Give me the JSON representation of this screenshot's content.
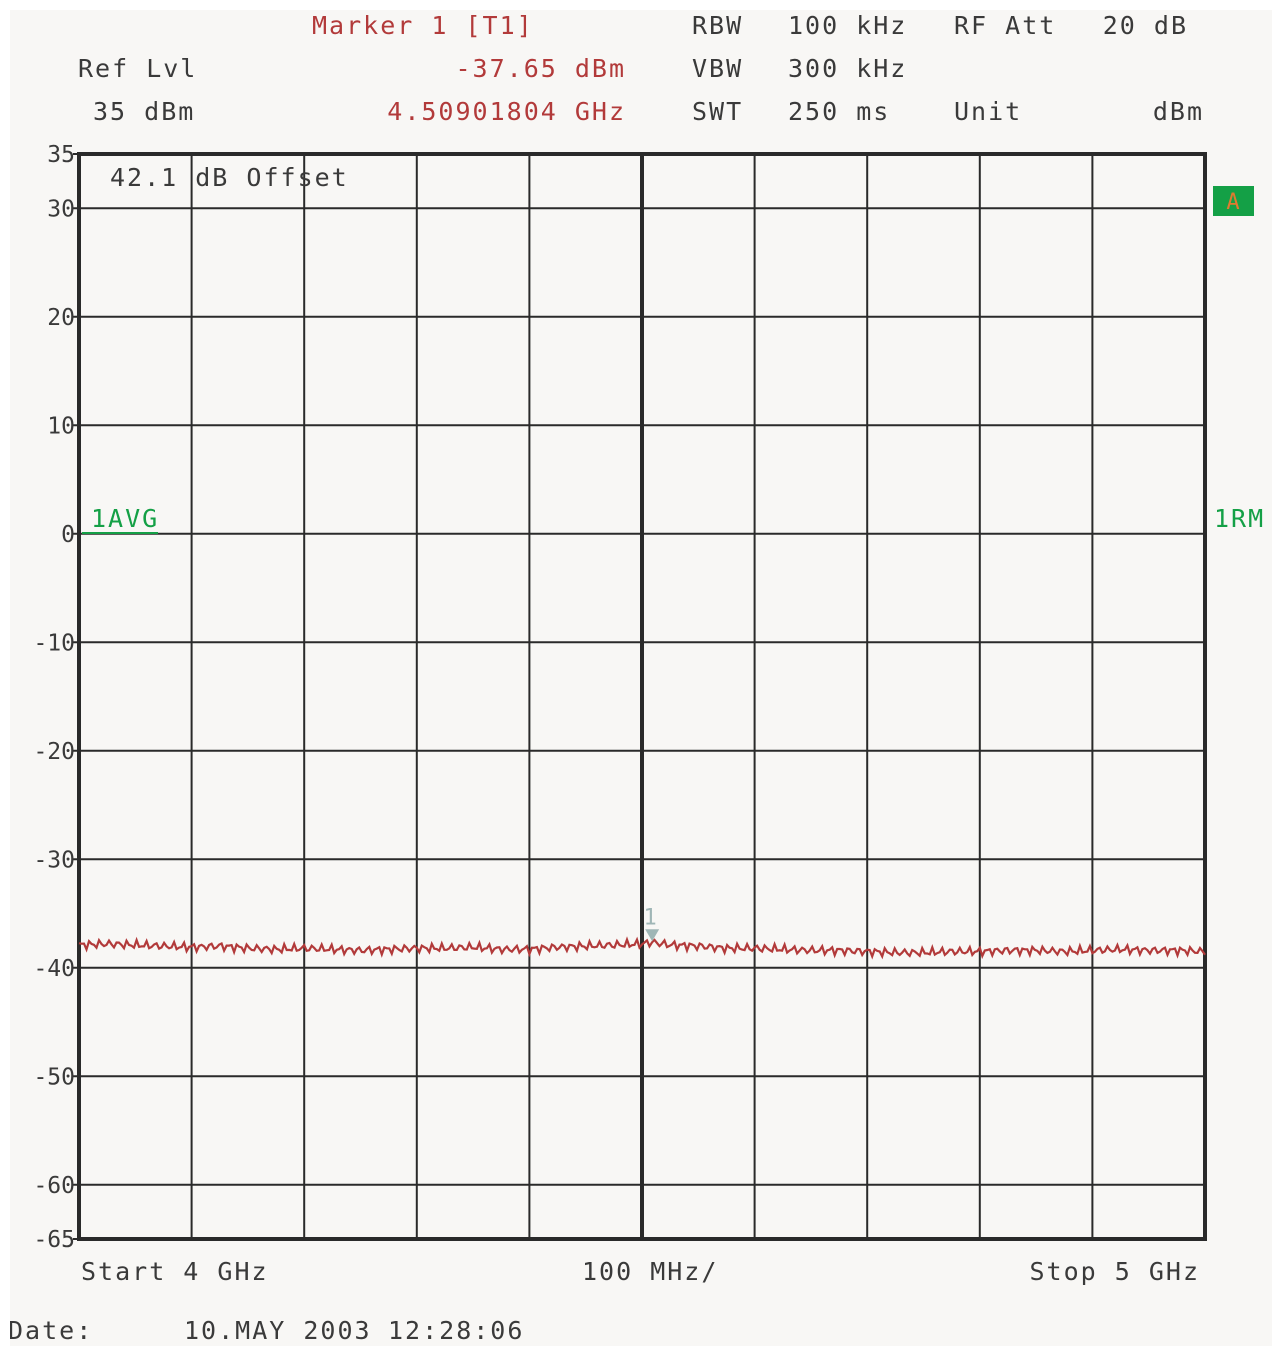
{
  "header": {
    "marker_title": "Marker 1 [T1]",
    "ref_lvl_label": "Ref Lvl",
    "ref_lvl_value": "35 dBm",
    "marker_level": "-37.65 dBm",
    "marker_freq": "4.50901804 GHz",
    "rbw_label": "RBW",
    "rbw_value": "100 kHz",
    "vbw_label": "VBW",
    "vbw_value": "300 kHz",
    "swt_label": "SWT",
    "swt_value": "250 ms",
    "rf_att_label": "RF Att",
    "rf_att_value": "20 dB",
    "unit_label": "Unit",
    "unit_value": "dBm"
  },
  "plot": {
    "offset_text": "42.1 dB Offset",
    "trace_label_left": "1AVG",
    "trace_label_right": "1RM",
    "badge": "A",
    "marker_number": "1"
  },
  "footer": {
    "start": "Start 4 GHz",
    "span_per_div": "100 MHz/",
    "stop": "Stop 5 GHz",
    "date_label": "Date:",
    "date_value": "10.MAY 2003",
    "time_value": "12:28:06"
  },
  "colors": {
    "trace": "#b23a3a",
    "grid": "#2a2a2a",
    "accent_green": "#14a046",
    "marker": "#9fb6b6"
  },
  "chart_data": {
    "type": "line",
    "title": "",
    "xlabel": "",
    "ylabel": "",
    "xlim": [
      4.0,
      5.0
    ],
    "ylim": [
      -65,
      35
    ],
    "y_ticks": [
      35,
      30,
      20,
      10,
      0,
      -10,
      -20,
      -30,
      -40,
      -50,
      -60,
      -65
    ],
    "x_divisions": 10,
    "grid": true,
    "series": [
      {
        "x": [
          4.0,
          4.025,
          4.05,
          4.075,
          4.1,
          4.125,
          4.15,
          4.175,
          4.2,
          4.225,
          4.25,
          4.275,
          4.3,
          4.325,
          4.35,
          4.375,
          4.4,
          4.425,
          4.45,
          4.475,
          4.5,
          4.509,
          4.525,
          4.55,
          4.575,
          4.6,
          4.625,
          4.65,
          4.675,
          4.7,
          4.725,
          4.75,
          4.775,
          4.8,
          4.825,
          4.85,
          4.875,
          4.9,
          4.925,
          4.95,
          4.975,
          5.0
        ],
        "y": [
          -37.9,
          -37.8,
          -37.9,
          -38.0,
          -38.1,
          -38.0,
          -38.2,
          -38.3,
          -38.2,
          -38.3,
          -38.4,
          -38.3,
          -38.2,
          -38.2,
          -38.1,
          -38.3,
          -38.3,
          -38.1,
          -38.0,
          -37.9,
          -37.8,
          -37.65,
          -37.9,
          -38.0,
          -38.2,
          -38.2,
          -38.3,
          -38.4,
          -38.4,
          -38.5,
          -38.6,
          -38.6,
          -38.5,
          -38.5,
          -38.4,
          -38.4,
          -38.5,
          -38.4,
          -38.3,
          -38.4,
          -38.4,
          -38.5
        ]
      }
    ],
    "marker": {
      "x": 4.50901804,
      "y": -37.65
    }
  }
}
